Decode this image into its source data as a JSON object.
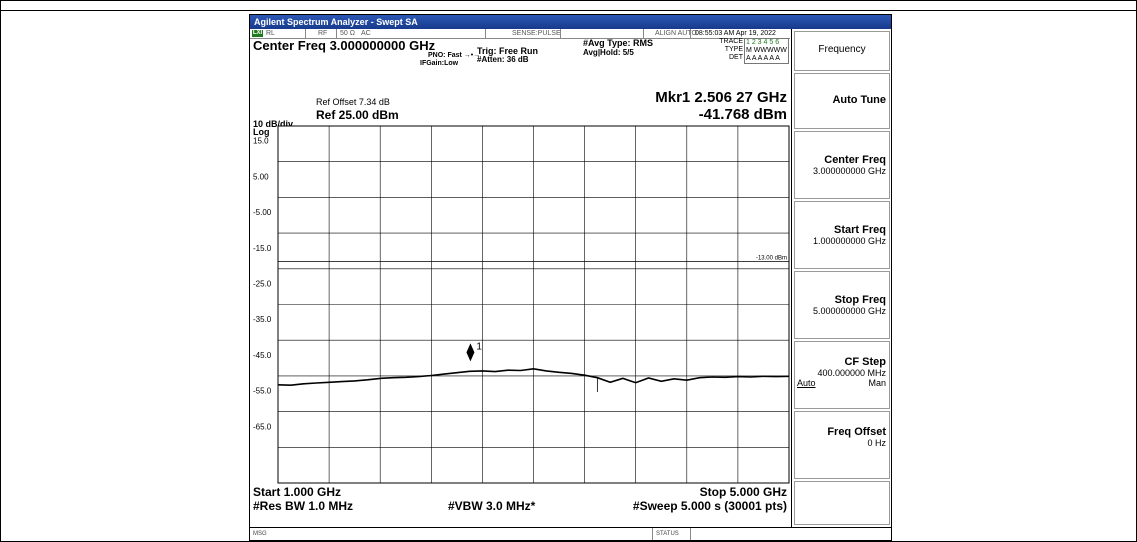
{
  "window": {
    "title": "Agilent Spectrum Analyzer - Swept SA"
  },
  "status": {
    "rl": "RL",
    "rf": "RF",
    "impedance": "50 Ω",
    "coupling": "AC",
    "sense": "SENSE:PULSE",
    "align": "ALIGN AUTO",
    "datetime": "08:55:03 AM Apr 19, 2022"
  },
  "header": {
    "center_freq": "Center Freq 3.000000000 GHz",
    "pno": "PNO: Fast",
    "ifgain": "IFGain:Low",
    "trig": "Trig: Free Run",
    "atten": "#Atten: 36 dB",
    "avg_type": "#Avg Type: RMS",
    "avg_hold": "Avg|Hold: 5/5",
    "trace_label": "TRACE",
    "trace_nums": "1 2 3 4 5 6",
    "type_label": "TYPE",
    "type_val": "M WWWWW",
    "det_label": "DET",
    "det_val": "A A A A A A",
    "ref_offset": "Ref Offset 7.34 dB",
    "scale": "10 dB/div",
    "ref_level": "Ref 25.00 dBm",
    "log": "Log",
    "marker_freq": "Mkr1 2.506 27 GHz",
    "marker_amp": "-41.768 dBm"
  },
  "plot": {
    "y_ticks": [
      "15.0",
      "5.00",
      "-5.00",
      "-15.0",
      "-25.0",
      "-35.0",
      "-45.0",
      "-55.0",
      "-65.0"
    ],
    "limit_label": "-13.00 dBm",
    "marker_label": "1",
    "start": "Start 1.000 GHz",
    "stop": "Stop 5.000 GHz",
    "rbw": "#Res BW 1.0 MHz",
    "vbw": "#VBW 3.0 MHz*",
    "sweep": "#Sweep  5.000 s (30001 pts)"
  },
  "chart_data": {
    "type": "line",
    "ref_level_dbm": 25,
    "db_per_div": 10,
    "ylim": [
      -75,
      25
    ],
    "xlim_ghz": [
      1.0,
      5.0
    ],
    "limit_line_dbm": -13.0,
    "marker": {
      "x_ghz": 2.50627,
      "y_dbm": -41.768
    },
    "series": [
      {
        "x_ghz": [
          1.0,
          1.1,
          1.2,
          1.3,
          1.4,
          1.5,
          1.6,
          1.7,
          1.8,
          1.9,
          2.0,
          2.1,
          2.2,
          2.3,
          2.4,
          2.5,
          2.6,
          2.7,
          2.8,
          2.9,
          3.0,
          3.1,
          3.2,
          3.3,
          3.4,
          3.5,
          3.6,
          3.7,
          3.8,
          3.9,
          4.0,
          4.1,
          4.2,
          4.3,
          4.4,
          4.5,
          4.6,
          4.7,
          4.8,
          4.9,
          5.0
        ],
        "y_dbm": [
          -47.5,
          -47.6,
          -47.2,
          -47.0,
          -46.8,
          -46.6,
          -46.4,
          -46.1,
          -45.7,
          -45.5,
          -45.4,
          -45.2,
          -44.9,
          -44.5,
          -44.1,
          -43.7,
          -43.6,
          -43.8,
          -43.4,
          -43.5,
          -43.0,
          -43.6,
          -44.0,
          -44.3,
          -44.8,
          -45.5,
          -46.8,
          -45.7,
          -46.9,
          -45.6,
          -46.5,
          -45.8,
          -46.2,
          -45.5,
          -45.3,
          -45.4,
          -45.2,
          -45.3,
          -45.1,
          -45.2,
          -45.1
        ]
      }
    ]
  },
  "softkeys": {
    "title": "Frequency",
    "auto_tune": "Auto Tune",
    "center_freq_label": "Center Freq",
    "center_freq_val": "3.000000000 GHz",
    "start_freq_label": "Start Freq",
    "start_freq_val": "1.000000000 GHz",
    "stop_freq_label": "Stop Freq",
    "stop_freq_val": "5.000000000 GHz",
    "cf_step_label": "CF Step",
    "cf_step_val": "400.000000 MHz",
    "cf_step_auto": "Auto",
    "cf_step_man": "Man",
    "freq_offset_label": "Freq Offset",
    "freq_offset_val": "0 Hz"
  },
  "footer": {
    "msg": "MSG",
    "status": "STATUS"
  }
}
